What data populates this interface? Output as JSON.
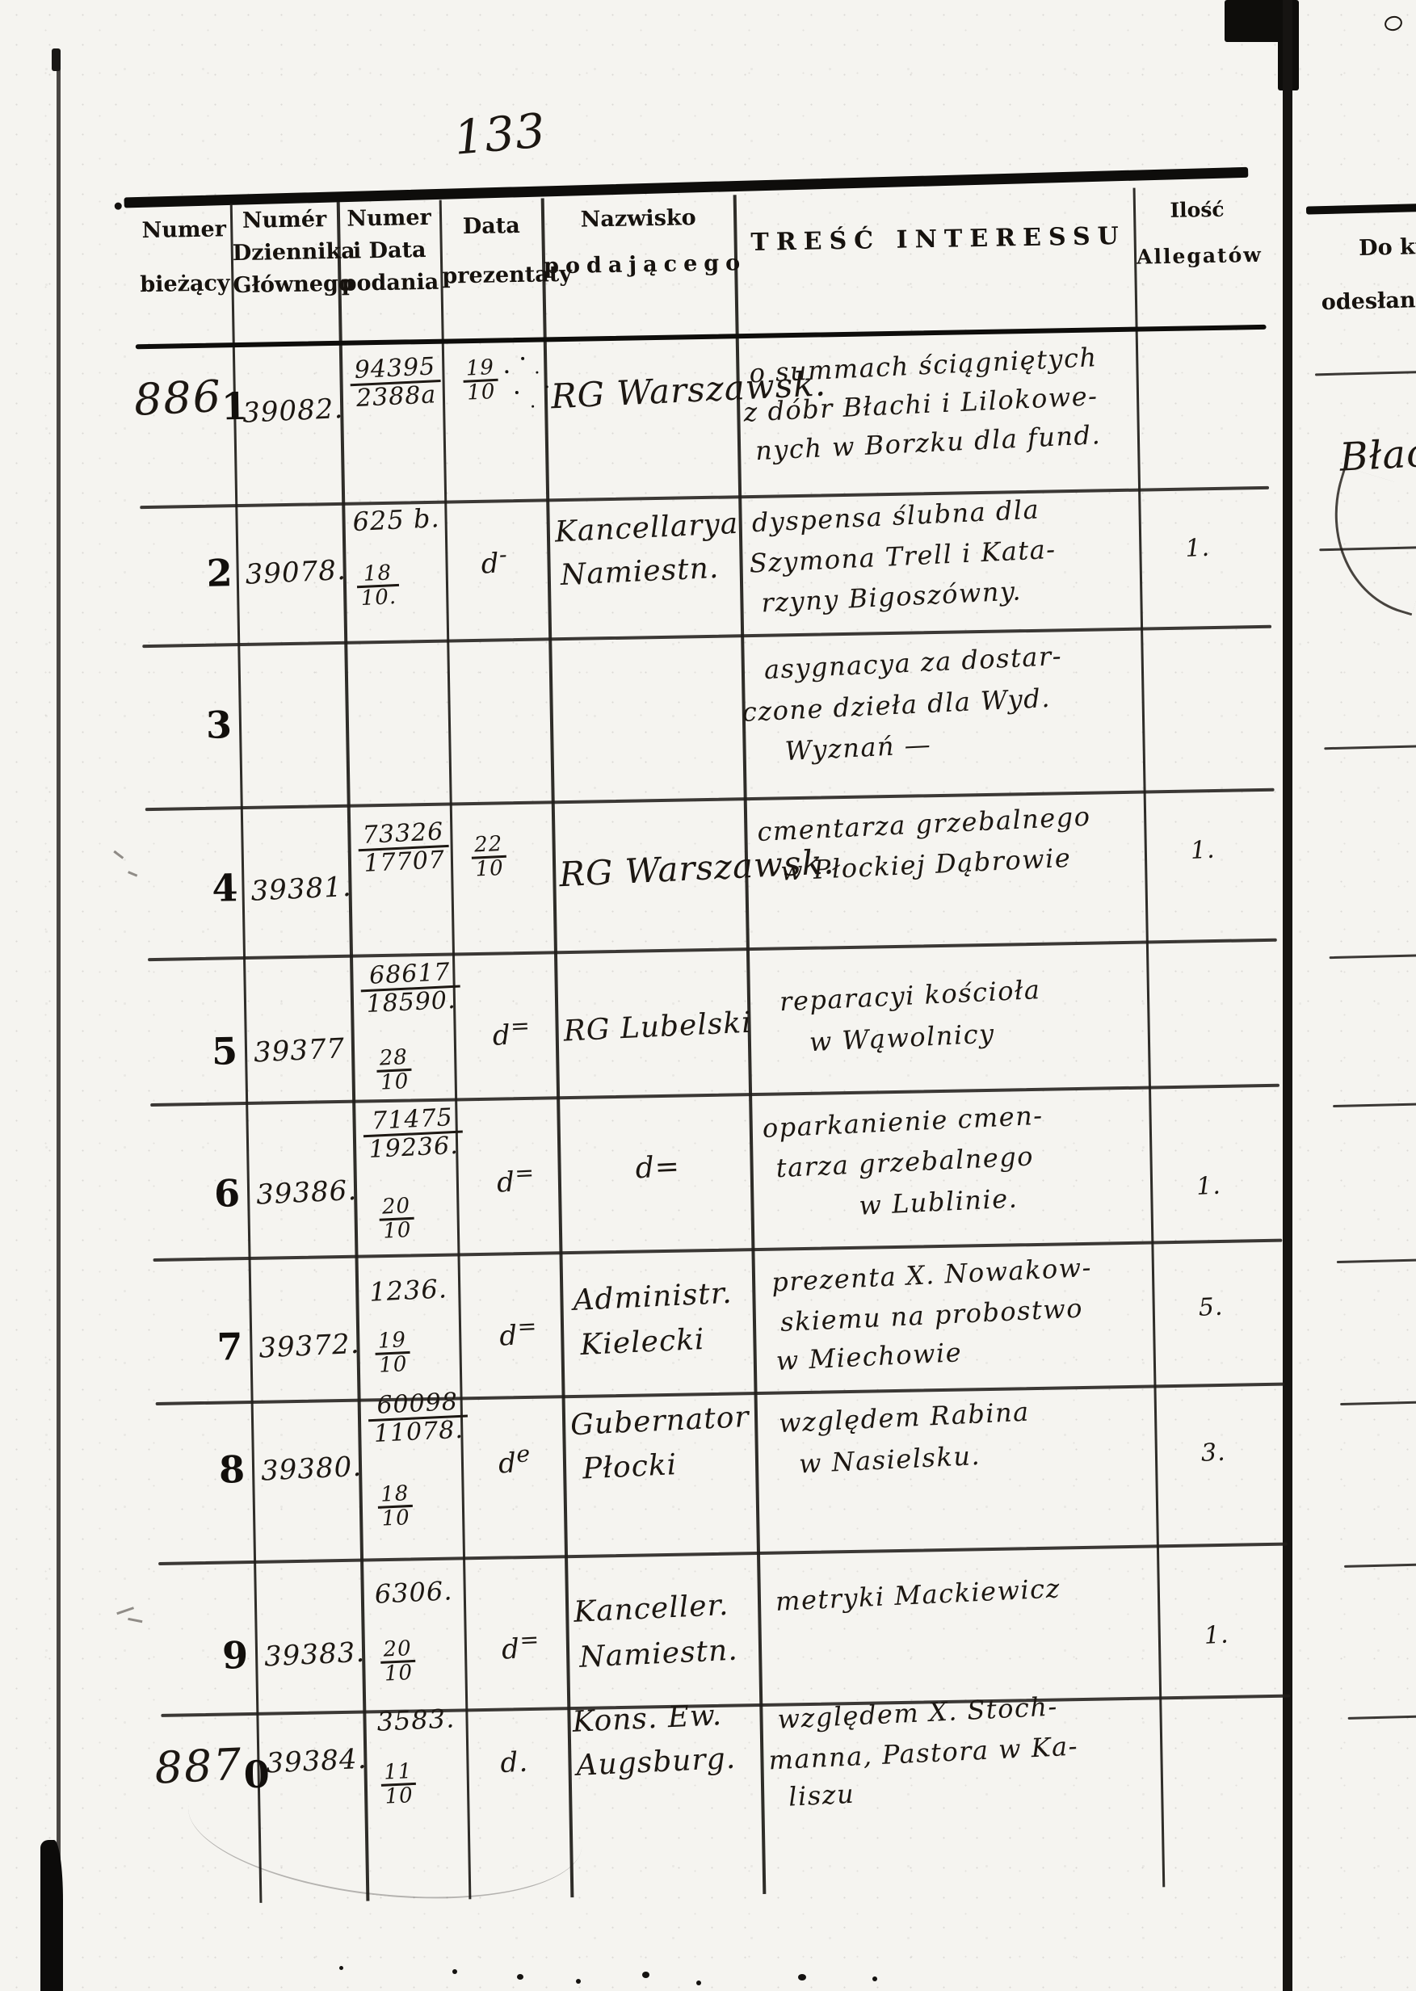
{
  "page": {
    "handwritten_page_number": "133",
    "paper_color": "#f5f4f0",
    "ink_color": "#1c1712"
  },
  "table": {
    "headers": {
      "numer_biezacy": [
        "Numer",
        "bieżący"
      ],
      "numer_dziennika": [
        "Numér",
        "Dziennika",
        "Głównego"
      ],
      "numer_i_data_podania": [
        "Numer",
        "i Data",
        "podania"
      ],
      "data_prezentaty": [
        "Data",
        "prezentaty"
      ],
      "nazwisko_podajacego": [
        "Nazwisko",
        "podającego"
      ],
      "tresc_interessu": "TREŚĆ INTERESSU",
      "ilosc_allegatow": [
        "Ilość",
        "Allegatów"
      ]
    },
    "rows": [
      {
        "seq_hand": "886",
        "seq_print": "1",
        "dziennik": "39082.",
        "podanie": [
          "94395/2388a"
        ],
        "prezentata": "19/10",
        "nazwisko": [
          "RG Warszawsk."
        ],
        "tresc": [
          "o summach ściągniętych",
          "z dóbr Błachi i Lilokowe-",
          "nych w Borzku dla fund."
        ],
        "allegaty": ""
      },
      {
        "seq_hand": "",
        "seq_print": "2",
        "dziennik": "39078.",
        "podanie": [
          "625 b.",
          "18/10."
        ],
        "prezentata": "d-",
        "nazwisko": [
          "Kancellarya",
          "Namiestn."
        ],
        "tresc": [
          "dyspensa ślubna dla",
          "Szymona Trell i Kata-",
          "rzyny Bigoszówny."
        ],
        "allegaty": "1."
      },
      {
        "seq_hand": "",
        "seq_print": "3",
        "dziennik": "",
        "podanie": [],
        "prezentata": "",
        "nazwisko": [],
        "tresc": [
          "asygnacya za dostar-",
          "czone dzieła dla Wyd.",
          "Wyznań          —"
        ],
        "allegaty": ""
      },
      {
        "seq_hand": "",
        "seq_print": "4",
        "dziennik": "39381.",
        "podanie": [
          "73326/17707"
        ],
        "prezentata": "22/10",
        "nazwisko": [
          "RG Warszawsk."
        ],
        "tresc": [
          "cmentarza grzebalnego",
          "w Płockiej Dąbrowie"
        ],
        "allegaty": "1."
      },
      {
        "seq_hand": "",
        "seq_print": "5",
        "dziennik": "39377",
        "podanie": [
          "68617/18590.",
          "28/10"
        ],
        "prezentata": "d=",
        "nazwisko": [
          "RG Lubelski"
        ],
        "tresc": [
          "reparacyi kościoła",
          "w Wąwolnicy"
        ],
        "allegaty": ""
      },
      {
        "seq_hand": "",
        "seq_print": "6",
        "dziennik": "39386.",
        "podanie": [
          "71475/19236.",
          "20/10"
        ],
        "prezentata": "d=",
        "nazwisko": [
          "d="
        ],
        "tresc": [
          "oparkanienie cmen-",
          "tarza grzebalnego",
          "w Lublinie."
        ],
        "allegaty": "1."
      },
      {
        "seq_hand": "",
        "seq_print": "7",
        "dziennik": "39372.",
        "podanie": [
          "1236.",
          "19/10"
        ],
        "prezentata": "d=",
        "nazwisko": [
          "Administr.",
          "Kielecki"
        ],
        "tresc": [
          "prezenta X. Nowakow-",
          "skiemu na probostwo",
          "w Miechowie"
        ],
        "allegaty": "5."
      },
      {
        "seq_hand": "",
        "seq_print": "8",
        "dziennik": "39380.",
        "podanie": [
          "60098/11078.",
          "18/10"
        ],
        "prezentata": "de",
        "nazwisko": [
          "Gubernator",
          "Płocki"
        ],
        "tresc": [
          "względem Rabina",
          "w Nasielsku."
        ],
        "allegaty": "3."
      },
      {
        "seq_hand": "",
        "seq_print": "9",
        "dziennik": "39383.",
        "podanie": [
          "6306.",
          "20/10"
        ],
        "prezentata": "d=",
        "nazwisko": [
          "Kanceller.",
          "Namiestn."
        ],
        "tresc": [
          "metryki Mackiewicz"
        ],
        "allegaty": "1."
      },
      {
        "seq_hand": "887",
        "seq_print": "0",
        "dziennik": "39384.",
        "podanie": [
          "3583.",
          "11/10"
        ],
        "prezentata": "d.",
        "nazwisko": [
          "Kons. Ew.",
          "Augsburg."
        ],
        "tresc": [
          "względem X. Stoch-",
          "manna, Pastora w Ka-",
          "liszu"
        ],
        "allegaty": ""
      }
    ]
  },
  "right_page": {
    "header_line_1": "Do któr",
    "header_line_2": "odesłano S",
    "handwritten_note": "Błach"
  }
}
